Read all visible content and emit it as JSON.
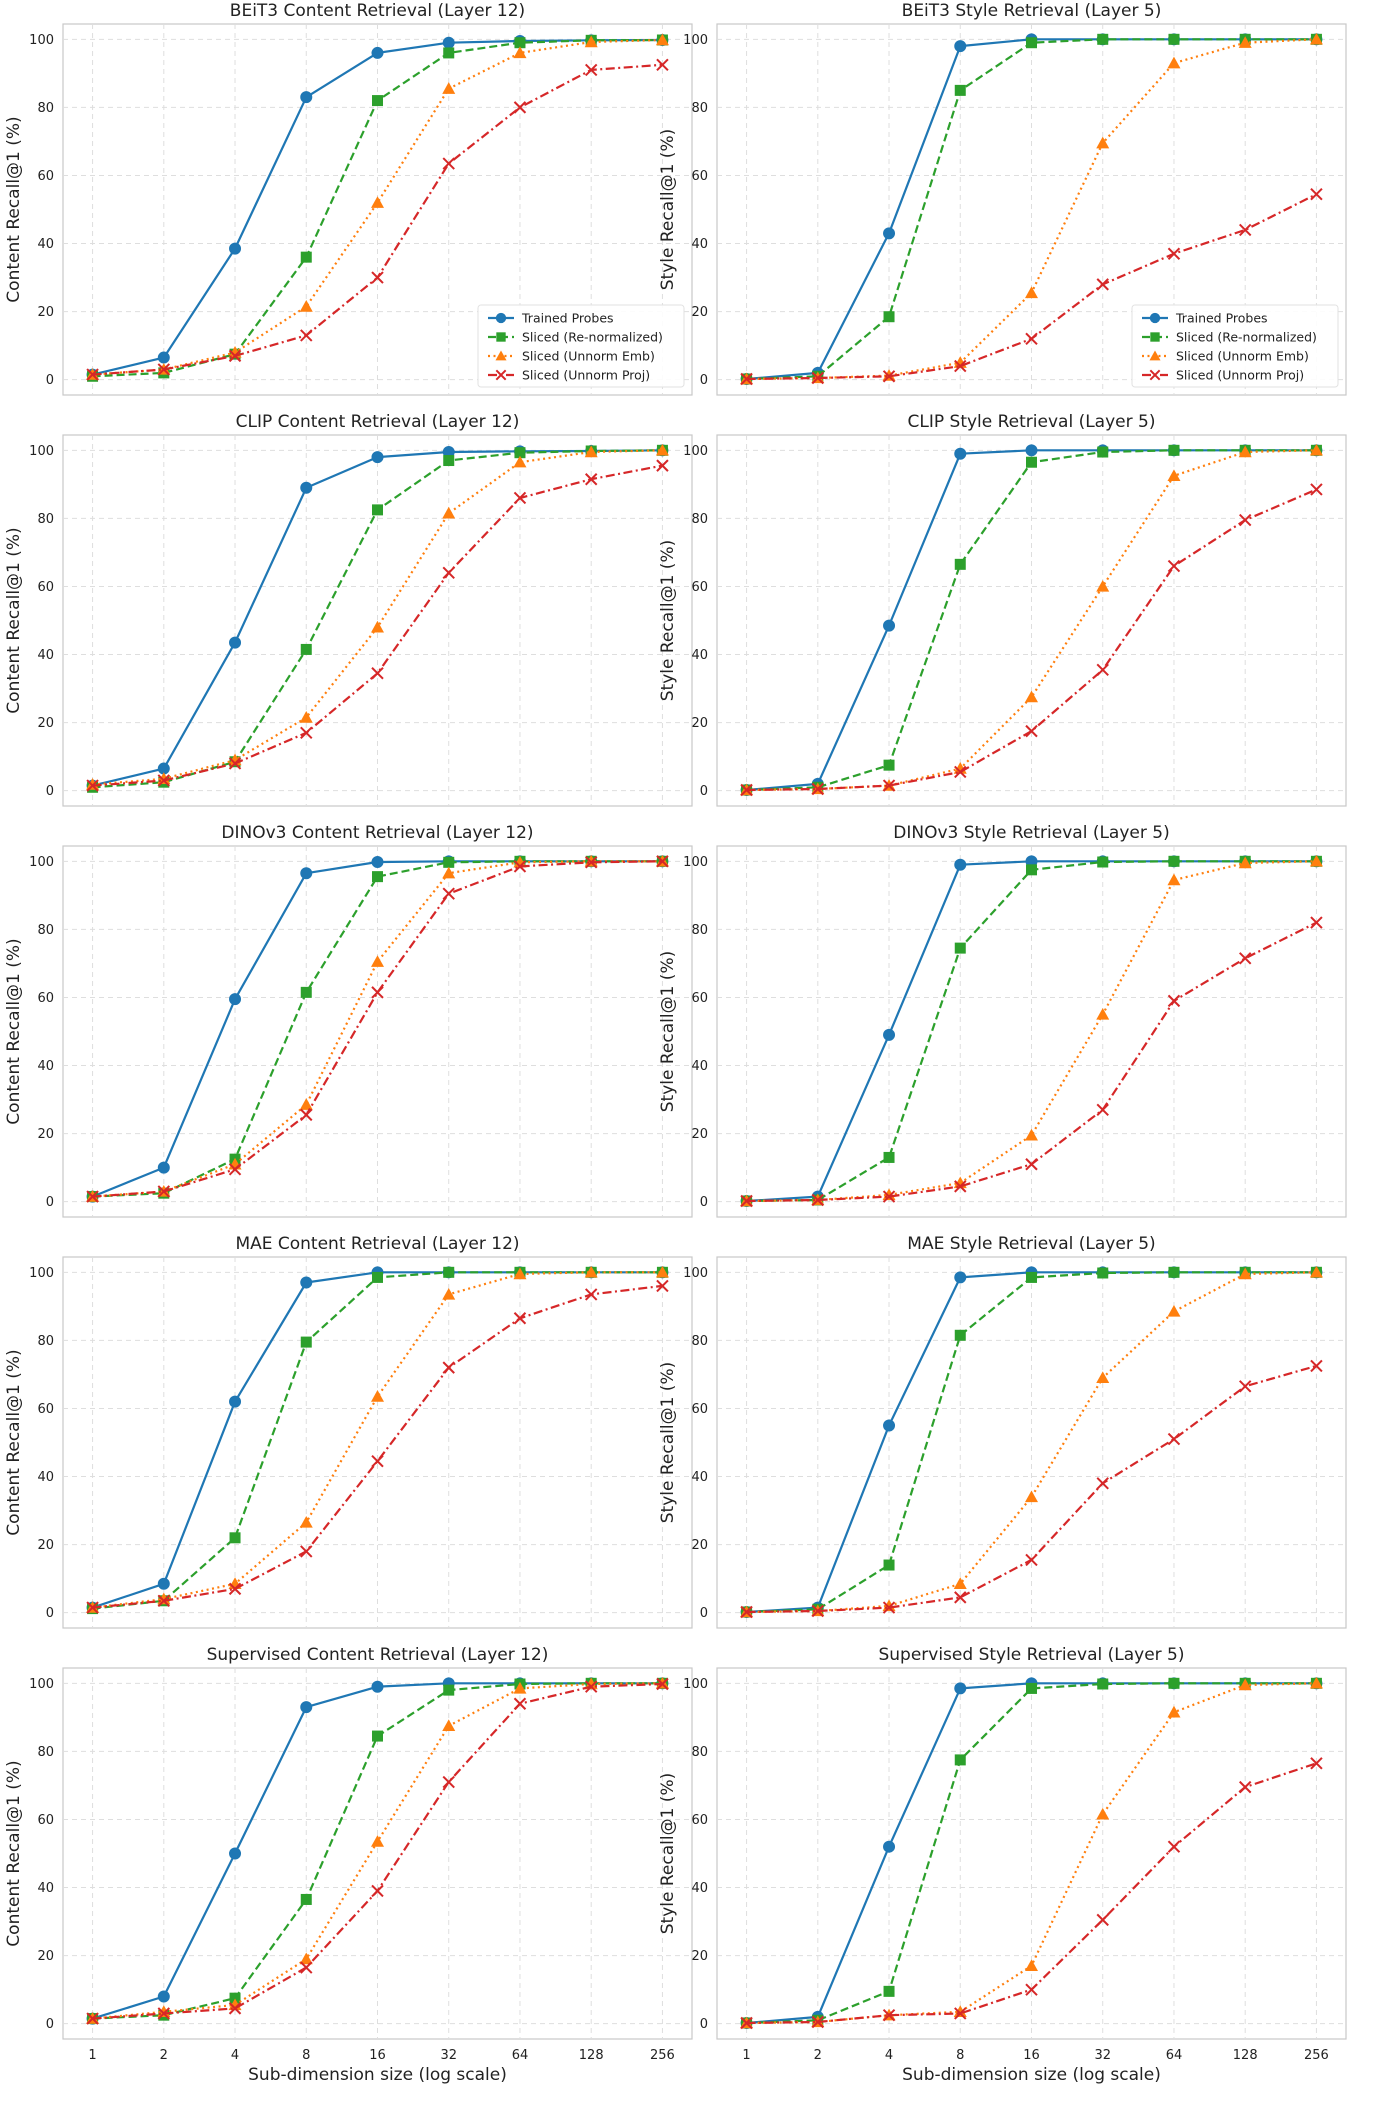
{
  "chart_data": [
    {
      "type": "line",
      "title": "BEiT3 Content Retrieval (Layer 12)",
      "xlabel": "",
      "ylabel": "Content Recall@1 (%)",
      "xscale": "log2",
      "x": [
        1,
        2,
        4,
        8,
        16,
        32,
        64,
        128,
        256
      ],
      "ylim": [
        0,
        100
      ],
      "grid": true,
      "legend": "lower-right",
      "series": [
        {
          "name": "Trained Probes",
          "color": "#1f77b4",
          "marker": "circle",
          "line": "solid",
          "values": [
            1.5,
            6.5,
            38.5,
            83,
            96,
            99,
            99.5,
            99.7,
            99.8
          ]
        },
        {
          "name": "Sliced (Re-normalized)",
          "color": "#2ca02c",
          "marker": "square",
          "line": "dashed",
          "values": [
            1,
            2,
            7.5,
            36,
            82,
            96,
            99,
            99.7,
            99.8
          ]
        },
        {
          "name": "Sliced (Unnorm Emb)",
          "color": "#ff7f0e",
          "marker": "triangle",
          "line": "dotted",
          "values": [
            1.5,
            3,
            8,
            21.5,
            52,
            85.5,
            96,
            99.2,
            99.8
          ]
        },
        {
          "name": "Sliced (Unnorm Proj)",
          "color": "#d62728",
          "marker": "x",
          "line": "dashdot",
          "values": [
            1.5,
            3,
            7,
            13,
            30,
            63.5,
            80,
            91,
            92.5
          ]
        }
      ]
    },
    {
      "type": "line",
      "title": "BEiT3 Style Retrieval (Layer 5)",
      "xlabel": "",
      "ylabel": "Style Recall@1 (%)",
      "xscale": "log2",
      "x": [
        1,
        2,
        4,
        8,
        16,
        32,
        64,
        128,
        256
      ],
      "ylim": [
        0,
        100
      ],
      "grid": true,
      "legend": "lower-right",
      "series": [
        {
          "name": "Trained Probes",
          "color": "#1f77b4",
          "marker": "circle",
          "line": "solid",
          "values": [
            0.2,
            2,
            43,
            98,
            100,
            100,
            100,
            100,
            100
          ]
        },
        {
          "name": "Sliced (Re-normalized)",
          "color": "#2ca02c",
          "marker": "square",
          "line": "dashed",
          "values": [
            0.2,
            1,
            18.5,
            85,
            99,
            100,
            100,
            100,
            100
          ]
        },
        {
          "name": "Sliced (Unnorm Emb)",
          "color": "#ff7f0e",
          "marker": "triangle",
          "line": "dotted",
          "values": [
            0.2,
            0.5,
            1.2,
            5,
            25.5,
            69.5,
            93,
            99,
            100
          ]
        },
        {
          "name": "Sliced (Unnorm Proj)",
          "color": "#d62728",
          "marker": "x",
          "line": "dashdot",
          "values": [
            0.2,
            0.5,
            1,
            4,
            12,
            28,
            37,
            44,
            54.5
          ]
        }
      ]
    },
    {
      "type": "line",
      "title": "CLIP Content Retrieval (Layer 12)",
      "xlabel": "",
      "ylabel": "Content Recall@1 (%)",
      "xscale": "log2",
      "x": [
        1,
        2,
        4,
        8,
        16,
        32,
        64,
        128,
        256
      ],
      "ylim": [
        0,
        100
      ],
      "grid": true,
      "legend": "none",
      "series": [
        {
          "name": "Trained Probes",
          "color": "#1f77b4",
          "marker": "circle",
          "line": "solid",
          "values": [
            1.5,
            6.5,
            43.5,
            89,
            98,
            99.5,
            99.7,
            99.8,
            100
          ]
        },
        {
          "name": "Sliced (Re-normalized)",
          "color": "#2ca02c",
          "marker": "square",
          "line": "dashed",
          "values": [
            1,
            2.5,
            8.5,
            41.5,
            82.5,
            97,
            99.3,
            99.8,
            100
          ]
        },
        {
          "name": "Sliced (Unnorm Emb)",
          "color": "#ff7f0e",
          "marker": "triangle",
          "line": "dotted",
          "values": [
            1.8,
            3.5,
            9,
            21.5,
            48,
            81.5,
            96.5,
            99.5,
            100
          ]
        },
        {
          "name": "Sliced (Unnorm Proj)",
          "color": "#d62728",
          "marker": "x",
          "line": "dashdot",
          "values": [
            1.5,
            3,
            8,
            17,
            34.5,
            64,
            86,
            91.5,
            95.5
          ]
        }
      ]
    },
    {
      "type": "line",
      "title": "CLIP Style Retrieval (Layer 5)",
      "xlabel": "",
      "ylabel": "Style Recall@1 (%)",
      "xscale": "log2",
      "x": [
        1,
        2,
        4,
        8,
        16,
        32,
        64,
        128,
        256
      ],
      "ylim": [
        0,
        100
      ],
      "grid": true,
      "legend": "none",
      "series": [
        {
          "name": "Trained Probes",
          "color": "#1f77b4",
          "marker": "circle",
          "line": "solid",
          "values": [
            0.2,
            2,
            48.5,
            99,
            100,
            100,
            100,
            100,
            100
          ]
        },
        {
          "name": "Sliced (Re-normalized)",
          "color": "#2ca02c",
          "marker": "square",
          "line": "dashed",
          "values": [
            0.2,
            1,
            7.5,
            66.5,
            96.5,
            99.5,
            100,
            100,
            100
          ]
        },
        {
          "name": "Sliced (Unnorm Emb)",
          "color": "#ff7f0e",
          "marker": "triangle",
          "line": "dotted",
          "values": [
            0.2,
            0.5,
            1.5,
            6.5,
            27.5,
            60,
            92.5,
            99.5,
            100
          ]
        },
        {
          "name": "Sliced (Unnorm Proj)",
          "color": "#d62728",
          "marker": "x",
          "line": "dashdot",
          "values": [
            0.2,
            0.5,
            1.5,
            5.5,
            17.5,
            35.5,
            66,
            79.5,
            88.5
          ]
        }
      ]
    },
    {
      "type": "line",
      "title": "DINOv3 Content Retrieval (Layer 12)",
      "xlabel": "",
      "ylabel": "Content Recall@1 (%)",
      "xscale": "log2",
      "x": [
        1,
        2,
        4,
        8,
        16,
        32,
        64,
        128,
        256
      ],
      "ylim": [
        0,
        100
      ],
      "grid": true,
      "legend": "none",
      "series": [
        {
          "name": "Trained Probes",
          "color": "#1f77b4",
          "marker": "circle",
          "line": "solid",
          "values": [
            1.5,
            10,
            59.5,
            96.5,
            99.8,
            100,
            100,
            100,
            100
          ]
        },
        {
          "name": "Sliced (Re-normalized)",
          "color": "#2ca02c",
          "marker": "square",
          "line": "dashed",
          "values": [
            1.5,
            2.5,
            12.5,
            61.5,
            95.5,
            99.7,
            100,
            100,
            100
          ]
        },
        {
          "name": "Sliced (Unnorm Emb)",
          "color": "#ff7f0e",
          "marker": "triangle",
          "line": "dotted",
          "values": [
            1.5,
            3,
            11,
            28.5,
            70.5,
            96.5,
            99.7,
            100,
            100
          ]
        },
        {
          "name": "Sliced (Unnorm Proj)",
          "color": "#d62728",
          "marker": "x",
          "line": "dashdot",
          "values": [
            1.5,
            3,
            9.5,
            25.5,
            61.5,
            90.5,
            98.5,
            99.7,
            100
          ]
        }
      ]
    },
    {
      "type": "line",
      "title": "DINOv3 Style Retrieval (Layer 5)",
      "xlabel": "",
      "ylabel": "Style Recall@1 (%)",
      "xscale": "log2",
      "x": [
        1,
        2,
        4,
        8,
        16,
        32,
        64,
        128,
        256
      ],
      "ylim": [
        0,
        100
      ],
      "grid": true,
      "legend": "none",
      "series": [
        {
          "name": "Trained Probes",
          "color": "#1f77b4",
          "marker": "circle",
          "line": "solid",
          "values": [
            0.2,
            1.5,
            49,
            99,
            100,
            100,
            100,
            100,
            100
          ]
        },
        {
          "name": "Sliced (Re-normalized)",
          "color": "#2ca02c",
          "marker": "square",
          "line": "dashed",
          "values": [
            0.2,
            0.5,
            13,
            74.5,
            97.5,
            99.8,
            100,
            100,
            100
          ]
        },
        {
          "name": "Sliced (Unnorm Emb)",
          "color": "#ff7f0e",
          "marker": "triangle",
          "line": "dotted",
          "values": [
            0.2,
            0.5,
            2,
            5.5,
            19.5,
            55,
            94.5,
            99.5,
            100
          ]
        },
        {
          "name": "Sliced (Unnorm Proj)",
          "color": "#d62728",
          "marker": "x",
          "line": "dashdot",
          "values": [
            0.2,
            0.5,
            1.5,
            4.5,
            11,
            27,
            59,
            71.5,
            82
          ]
        }
      ]
    },
    {
      "type": "line",
      "title": "MAE Content Retrieval (Layer 12)",
      "xlabel": "",
      "ylabel": "Content Recall@1 (%)",
      "xscale": "log2",
      "x": [
        1,
        2,
        4,
        8,
        16,
        32,
        64,
        128,
        256
      ],
      "ylim": [
        0,
        100
      ],
      "grid": true,
      "legend": "none",
      "series": [
        {
          "name": "Trained Probes",
          "color": "#1f77b4",
          "marker": "circle",
          "line": "solid",
          "values": [
            1.5,
            8.5,
            62,
            97,
            100,
            100,
            100,
            100,
            100
          ]
        },
        {
          "name": "Sliced (Re-normalized)",
          "color": "#2ca02c",
          "marker": "square",
          "line": "dashed",
          "values": [
            1.2,
            3.5,
            22,
            79.5,
            98.5,
            100,
            100,
            100,
            100
          ]
        },
        {
          "name": "Sliced (Unnorm Emb)",
          "color": "#ff7f0e",
          "marker": "triangle",
          "line": "dotted",
          "values": [
            1.5,
            4,
            8.5,
            26.5,
            63.5,
            93.5,
            99.5,
            100,
            100
          ]
        },
        {
          "name": "Sliced (Unnorm Proj)",
          "color": "#d62728",
          "marker": "x",
          "line": "dashdot",
          "values": [
            1.5,
            3.5,
            7,
            18,
            44.5,
            72,
            86.5,
            93.5,
            96
          ]
        }
      ]
    },
    {
      "type": "line",
      "title": "MAE Style Retrieval (Layer 5)",
      "xlabel": "",
      "ylabel": "Style Recall@1 (%)",
      "xscale": "log2",
      "x": [
        1,
        2,
        4,
        8,
        16,
        32,
        64,
        128,
        256
      ],
      "ylim": [
        0,
        100
      ],
      "grid": true,
      "legend": "none",
      "series": [
        {
          "name": "Trained Probes",
          "color": "#1f77b4",
          "marker": "circle",
          "line": "solid",
          "values": [
            0.2,
            1.5,
            55,
            98.5,
            100,
            100,
            100,
            100,
            100
          ]
        },
        {
          "name": "Sliced (Re-normalized)",
          "color": "#2ca02c",
          "marker": "square",
          "line": "dashed",
          "values": [
            0.2,
            1,
            14,
            81.5,
            98.5,
            99.8,
            100,
            100,
            100
          ]
        },
        {
          "name": "Sliced (Unnorm Emb)",
          "color": "#ff7f0e",
          "marker": "triangle",
          "line": "dotted",
          "values": [
            0.2,
            0.5,
            2,
            8.5,
            34,
            69,
            88.5,
            99.5,
            100
          ]
        },
        {
          "name": "Sliced (Unnorm Proj)",
          "color": "#d62728",
          "marker": "x",
          "line": "dashdot",
          "values": [
            0.2,
            0.5,
            1.5,
            4.5,
            15.5,
            38,
            51,
            66.5,
            72.5
          ]
        }
      ]
    },
    {
      "type": "line",
      "title": "Supervised Content Retrieval (Layer 12)",
      "xlabel": "Sub-dimension size (log scale)",
      "ylabel": "Content Recall@1 (%)",
      "xscale": "log2",
      "x": [
        1,
        2,
        4,
        8,
        16,
        32,
        64,
        128,
        256
      ],
      "ylim": [
        0,
        100
      ],
      "grid": true,
      "legend": "none",
      "series": [
        {
          "name": "Trained Probes",
          "color": "#1f77b4",
          "marker": "circle",
          "line": "solid",
          "values": [
            1.5,
            8,
            50,
            93,
            99,
            100,
            100,
            100,
            100
          ]
        },
        {
          "name": "Sliced (Re-normalized)",
          "color": "#2ca02c",
          "marker": "square",
          "line": "dashed",
          "values": [
            1.5,
            2.5,
            7.5,
            36.5,
            84.5,
            98,
            99.8,
            100,
            100
          ]
        },
        {
          "name": "Sliced (Unnorm Emb)",
          "color": "#ff7f0e",
          "marker": "triangle",
          "line": "dotted",
          "values": [
            1.5,
            3.5,
            5.5,
            19,
            53.5,
            87.5,
            98.5,
            99.8,
            100
          ]
        },
        {
          "name": "Sliced (Unnorm Proj)",
          "color": "#d62728",
          "marker": "x",
          "line": "dashdot",
          "values": [
            1.5,
            3,
            4.5,
            16.5,
            39,
            71,
            94,
            99,
            99.8
          ]
        }
      ]
    },
    {
      "type": "line",
      "title": "Supervised Style Retrieval (Layer 5)",
      "xlabel": "Sub-dimension size (log scale)",
      "ylabel": "Style Recall@1 (%)",
      "xscale": "log2",
      "x": [
        1,
        2,
        4,
        8,
        16,
        32,
        64,
        128,
        256
      ],
      "ylim": [
        0,
        100
      ],
      "grid": true,
      "legend": "none",
      "series": [
        {
          "name": "Trained Probes",
          "color": "#1f77b4",
          "marker": "circle",
          "line": "solid",
          "values": [
            0.2,
            2,
            52,
            98.5,
            100,
            100,
            100,
            100,
            100
          ]
        },
        {
          "name": "Sliced (Re-normalized)",
          "color": "#2ca02c",
          "marker": "square",
          "line": "dashed",
          "values": [
            0.2,
            1,
            9.5,
            77.5,
            98.5,
            99.8,
            100,
            100,
            100
          ]
        },
        {
          "name": "Sliced (Unnorm Emb)",
          "color": "#ff7f0e",
          "marker": "triangle",
          "line": "dotted",
          "values": [
            0.2,
            0.5,
            2.5,
            3.5,
            17,
            61.5,
            91.5,
            99.5,
            100
          ]
        },
        {
          "name": "Sliced (Unnorm Proj)",
          "color": "#d62728",
          "marker": "x",
          "line": "dashdot",
          "values": [
            0.2,
            0.5,
            2.5,
            3,
            10,
            30.5,
            52,
            69.5,
            76.5
          ]
        }
      ]
    }
  ],
  "x_tick_labels": [
    "1",
    "2",
    "4",
    "8",
    "16",
    "32",
    "64",
    "128",
    "256"
  ],
  "y_tick_labels": [
    "0",
    "20",
    "40",
    "60",
    "80",
    "100"
  ]
}
